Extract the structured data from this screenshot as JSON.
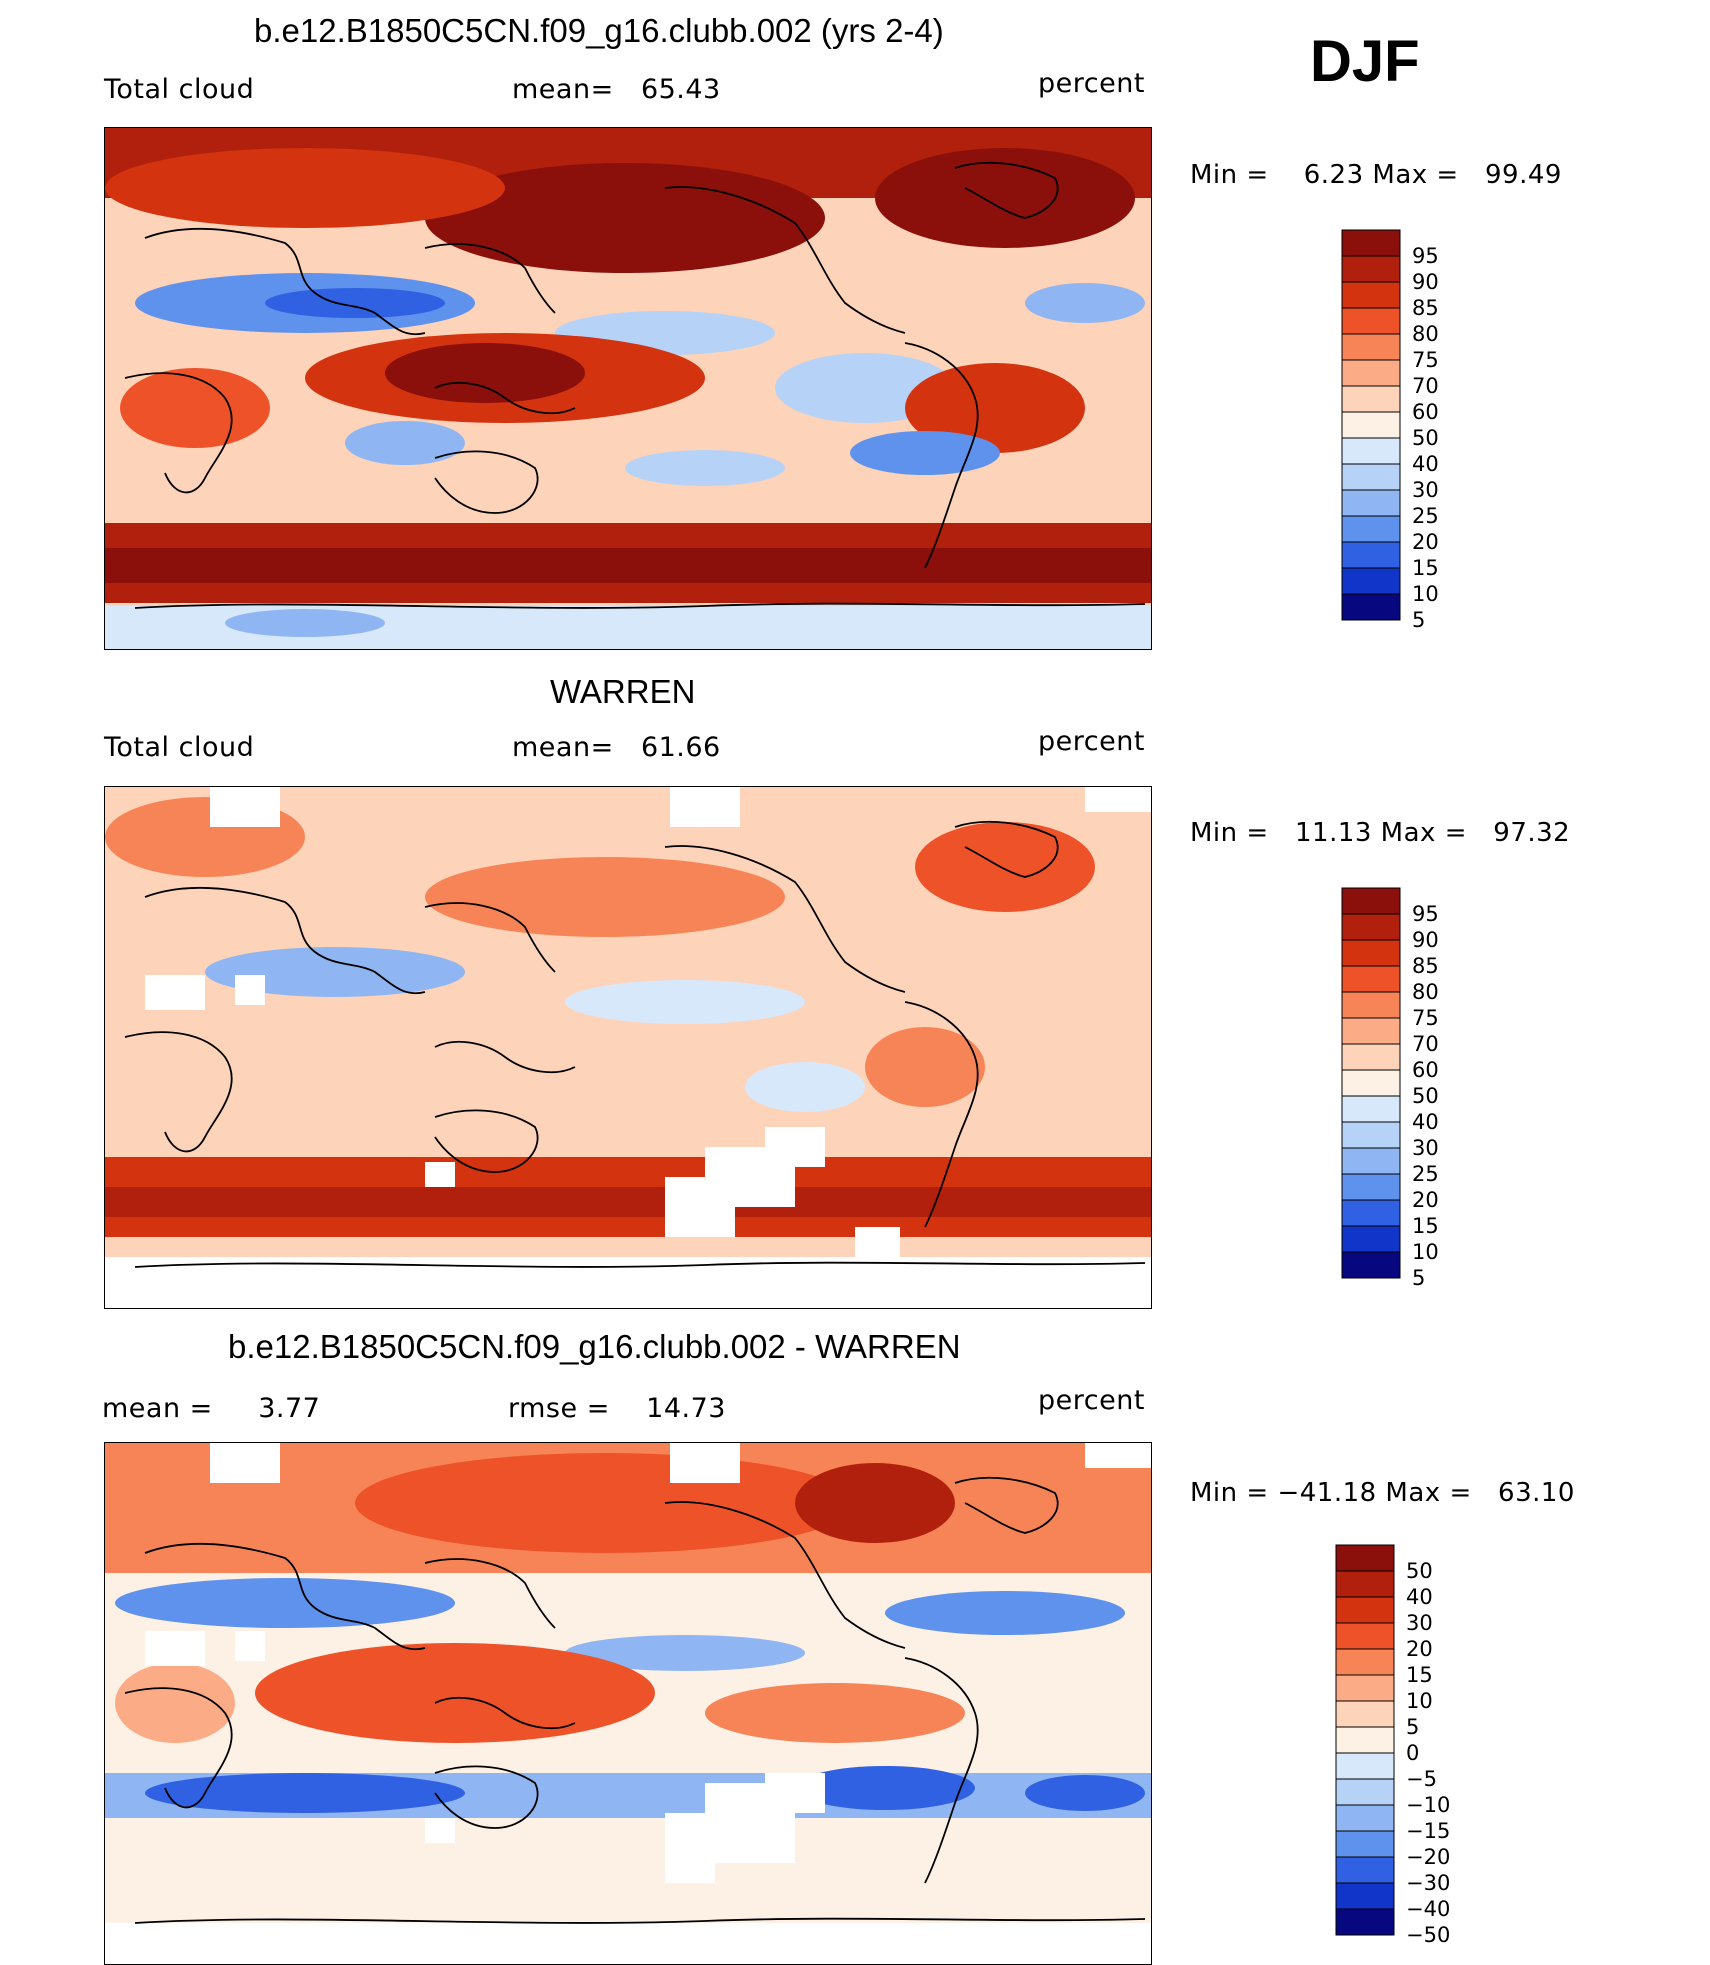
{
  "season": "DJF",
  "panels": [
    {
      "id": "model",
      "title": "b.e12.B1850C5CN.f09_g16.clubb.002 (yrs 2-4)",
      "left_label": "Total cloud",
      "mid_label": "mean=   65.43",
      "right_label": "percent",
      "minmax": "Min =    6.23 Max =   99.49",
      "stats": {
        "mean": 65.43,
        "min": 6.23,
        "max": 99.49
      },
      "colorbar": {
        "levels": [
          "95",
          "90",
          "85",
          "80",
          "75",
          "70",
          "60",
          "50",
          "40",
          "30",
          "25",
          "20",
          "15",
          "10",
          "5"
        ],
        "colors": [
          "#8b0f0a",
          "#b0200d",
          "#d4330f",
          "#ee5228",
          "#f78456",
          "#fbac86",
          "#fdd3b9",
          "#fdf0e4",
          "#d8e8fb",
          "#b7d2f7",
          "#8fb6f2",
          "#5f92ec",
          "#2f61e2",
          "#1135c9",
          "#07087f"
        ]
      }
    },
    {
      "id": "obs",
      "title": "WARREN",
      "left_label": "Total cloud",
      "mid_label": "mean=   61.66",
      "right_label": "percent",
      "minmax": "Min =   11.13 Max =   97.32",
      "stats": {
        "mean": 61.66,
        "min": 11.13,
        "max": 97.32
      },
      "colorbar": {
        "levels": [
          "95",
          "90",
          "85",
          "80",
          "75",
          "70",
          "60",
          "50",
          "40",
          "30",
          "25",
          "20",
          "15",
          "10",
          "5"
        ],
        "colors": [
          "#8b0f0a",
          "#b0200d",
          "#d4330f",
          "#ee5228",
          "#f78456",
          "#fbac86",
          "#fdd3b9",
          "#fdf0e4",
          "#d8e8fb",
          "#b7d2f7",
          "#8fb6f2",
          "#5f92ec",
          "#2f61e2",
          "#1135c9",
          "#07087f"
        ]
      }
    },
    {
      "id": "diff",
      "title": "b.e12.B1850C5CN.f09_g16.clubb.002 - WARREN",
      "left_label": "mean =     3.77",
      "mid_label": "rmse =    14.73",
      "right_label": "percent",
      "minmax": "Min = −41.18 Max =   63.10",
      "stats": {
        "mean": 3.77,
        "rmse": 14.73,
        "min": -41.18,
        "max": 63.1
      },
      "colorbar": {
        "levels": [
          "50",
          "40",
          "30",
          "20",
          "15",
          "10",
          "5",
          "0",
          "−5",
          "−10",
          "−15",
          "−20",
          "−30",
          "−40",
          "−50"
        ],
        "colors": [
          "#8b0f0a",
          "#b0200d",
          "#d4330f",
          "#ee5228",
          "#f78456",
          "#fbac86",
          "#fdd3b9",
          "#fdf0e4",
          "#d8e8fb",
          "#b7d2f7",
          "#8fb6f2",
          "#5f92ec",
          "#2f61e2",
          "#1135c9",
          "#07087f"
        ]
      }
    }
  ]
}
